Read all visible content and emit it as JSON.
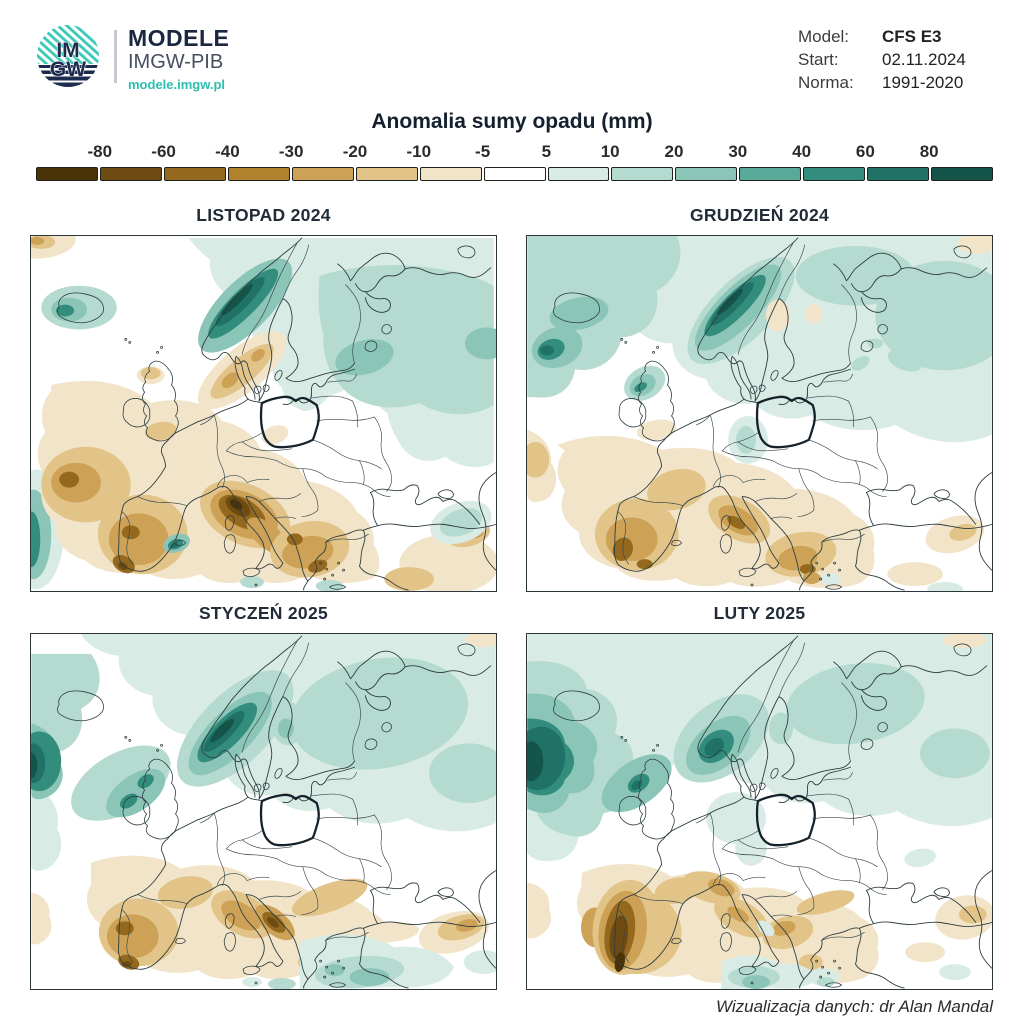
{
  "header": {
    "logo": {
      "monogram_line1": "IM",
      "monogram_line2": "GW",
      "brand": "MODELE",
      "subbrand": "IMGW-PIB",
      "url": "modele.imgw.pl"
    },
    "meta": [
      {
        "label": "Model:",
        "value": "CFS E3"
      },
      {
        "label": "Start:",
        "value": "02.11.2024"
      },
      {
        "label": "Norma:",
        "value": "1991-2020"
      }
    ]
  },
  "legend": {
    "title": "Anomalia sumy opadu (mm)",
    "ticks": [
      "-80",
      "-60",
      "-40",
      "-30",
      "-20",
      "-10",
      "-5",
      "5",
      "10",
      "20",
      "30",
      "40",
      "60",
      "80"
    ],
    "colors": [
      "#4a3407",
      "#6d4b12",
      "#94681d",
      "#b2832e",
      "#cda257",
      "#e2c489",
      "#f2e4c8",
      "#ffffff",
      "#d8ebe4",
      "#b5dacf",
      "#8ac5b7",
      "#58a997",
      "#338d7c",
      "#1f7265",
      "#155449"
    ]
  },
  "maps": [
    {
      "title": "LISTOPAD 2024"
    },
    {
      "title": "GRUDZIEŃ 2024"
    },
    {
      "title": "STYCZEŃ 2025"
    },
    {
      "title": "LUTY 2025"
    }
  ],
  "footer": {
    "credit": "Wizualizacja danych: dr Alan Mandal"
  },
  "palette": {
    "accent_teal": "#2bbfae",
    "navy": "#1b2740"
  }
}
